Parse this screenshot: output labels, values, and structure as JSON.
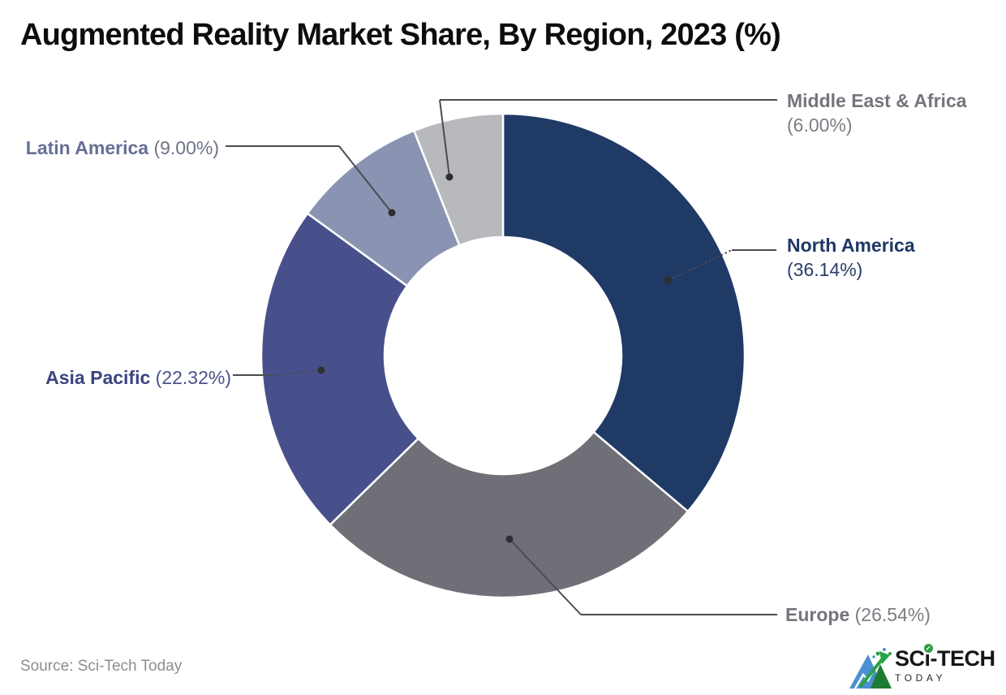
{
  "title": "Augmented Reality Market Share, By Region, 2023 (%)",
  "source": "Source: Sci-Tech Today",
  "logo": {
    "name_part1": "SC",
    "name_part2": "i",
    "name_part3": "-TECH",
    "subtitle": "TODAY",
    "check_icon": "✓"
  },
  "chart_data": {
    "type": "pie",
    "subtype": "donut",
    "title": "Augmented Reality Market Share, By Region, 2023 (%)",
    "unit": "%",
    "direction": "clockwise",
    "start_angle_deg": 0,
    "inner_radius_ratio": 0.49,
    "legend_position": "callout-labels",
    "categories": [
      "North America",
      "Europe",
      "Asia Pacific",
      "Latin America",
      "Middle East & Africa"
    ],
    "values": [
      36.14,
      26.54,
      22.32,
      9.0,
      6.0
    ],
    "colors": [
      "#203A66",
      "#6F7077",
      "#48508C",
      "#8A94B2",
      "#B8B9BC"
    ],
    "callout_line_color": "#4B4B52",
    "callout_dot_color": "#2E2E33",
    "separator_color": "#FFFFFF"
  },
  "labels": {
    "north_america": {
      "name": "North America",
      "value": "(36.14%)",
      "name_color": "#1F3865",
      "value_color": "#27406E"
    },
    "europe": {
      "name": "Europe",
      "value": "(26.54%)",
      "name_color": "#74757C",
      "value_color": "#7C7D84"
    },
    "asia_pacific": {
      "name": "Asia Pacific",
      "value": "(22.32%)",
      "name_color": "#3B4480",
      "value_color": "#4A528D"
    },
    "latin_america": {
      "name": "Latin America",
      "value": "(9.00%)",
      "name_color": "#666F96",
      "value_color": "#6F7386"
    },
    "middle_east_africa": {
      "name": "Middle East & Africa",
      "value": "(6.00%)",
      "name_color": "#74757C",
      "value_color": "#7C7D84"
    }
  }
}
